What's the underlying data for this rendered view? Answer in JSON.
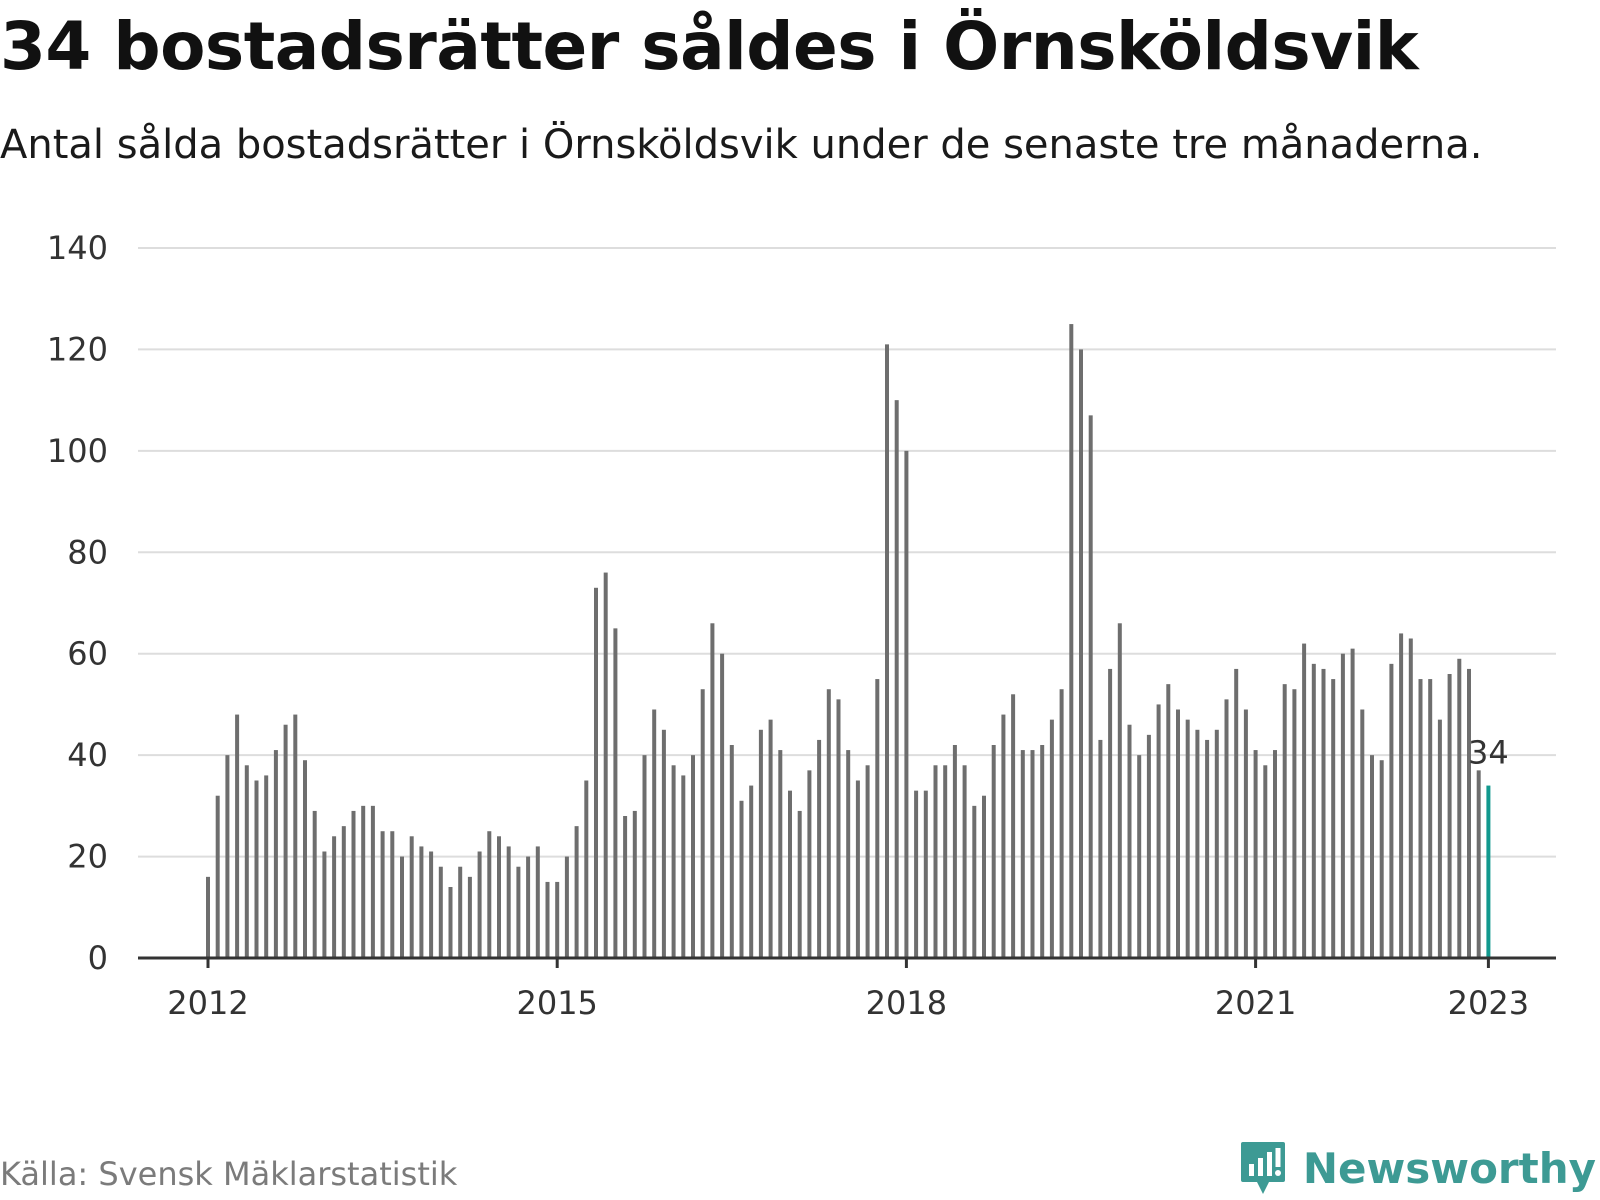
{
  "header": {
    "title": "34 bostadsrätter såldes i Örnsköldsvik",
    "subtitle": "Antal sålda bostadsrätter i Örnsköldsvik under de senaste tre månaderna."
  },
  "footer": {
    "source": "Källa: Svensk Mäklarstatistik",
    "brand": "Newsworthy",
    "brand_icon": "newsworthy-logo-icon"
  },
  "colors": {
    "bar": "#6e6e6e",
    "highlight": "#12998e",
    "grid": "#dddddd",
    "axis": "#333333",
    "brand": "#3d9a94"
  },
  "chart_data": {
    "type": "bar",
    "x_unit": "month",
    "x_start": "2012-01",
    "x_end": "2023-01",
    "x_ticks": [
      "2012",
      "2015",
      "2018",
      "2021",
      "2023"
    ],
    "y_ticks": [
      0,
      20,
      40,
      60,
      80,
      100,
      120,
      140
    ],
    "ylim": [
      0,
      140
    ],
    "grid": true,
    "highlight_last": true,
    "annotation": "34",
    "values": [
      16,
      32,
      40,
      48,
      38,
      35,
      36,
      41,
      46,
      48,
      39,
      29,
      21,
      24,
      26,
      29,
      30,
      30,
      25,
      25,
      20,
      24,
      22,
      21,
      18,
      14,
      18,
      16,
      21,
      25,
      24,
      22,
      18,
      20,
      22,
      15,
      15,
      20,
      26,
      35,
      73,
      76,
      65,
      28,
      29,
      40,
      49,
      45,
      38,
      36,
      40,
      53,
      66,
      60,
      42,
      31,
      34,
      45,
      47,
      41,
      33,
      29,
      37,
      43,
      53,
      51,
      41,
      35,
      38,
      55,
      121,
      110,
      100,
      33,
      33,
      38,
      38,
      42,
      38,
      30,
      32,
      42,
      48,
      52,
      41,
      41,
      42,
      47,
      53,
      125,
      120,
      107,
      43,
      57,
      66,
      46,
      40,
      44,
      50,
      54,
      49,
      47,
      45,
      43,
      45,
      51,
      57,
      49,
      41,
      38,
      41,
      54,
      53,
      62,
      58,
      57,
      55,
      60,
      61,
      49,
      40,
      39,
      58,
      64,
      63,
      55,
      55,
      47,
      56,
      59,
      57,
      37,
      34
    ]
  }
}
